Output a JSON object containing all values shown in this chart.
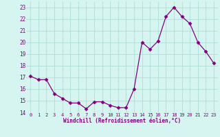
{
  "x": [
    0,
    1,
    2,
    3,
    4,
    5,
    6,
    7,
    8,
    9,
    10,
    11,
    12,
    13,
    14,
    15,
    16,
    17,
    18,
    19,
    20,
    21,
    22,
    23
  ],
  "y": [
    17.1,
    16.8,
    16.8,
    15.6,
    15.2,
    14.8,
    14.8,
    14.3,
    14.9,
    14.9,
    14.6,
    14.4,
    14.4,
    16.0,
    20.0,
    19.4,
    20.1,
    22.2,
    23.0,
    22.2,
    21.6,
    20.0,
    19.2,
    18.2
  ],
  "line_color": "#800080",
  "marker": "D",
  "marker_size": 2.5,
  "bg_color": "#d6f5f0",
  "grid_color": "#b0ddd8",
  "xlabel": "Windchill (Refroidissement éolien,°C)",
  "xlabel_color": "#800080",
  "tick_color": "#800080",
  "ylim": [
    14,
    23.5
  ],
  "xlim": [
    -0.5,
    23.5
  ],
  "yticks": [
    14,
    15,
    16,
    17,
    18,
    19,
    20,
    21,
    22,
    23
  ],
  "xticks": [
    0,
    1,
    2,
    3,
    4,
    5,
    6,
    7,
    8,
    9,
    10,
    11,
    12,
    13,
    14,
    15,
    16,
    17,
    18,
    19,
    20,
    21,
    22,
    23
  ]
}
